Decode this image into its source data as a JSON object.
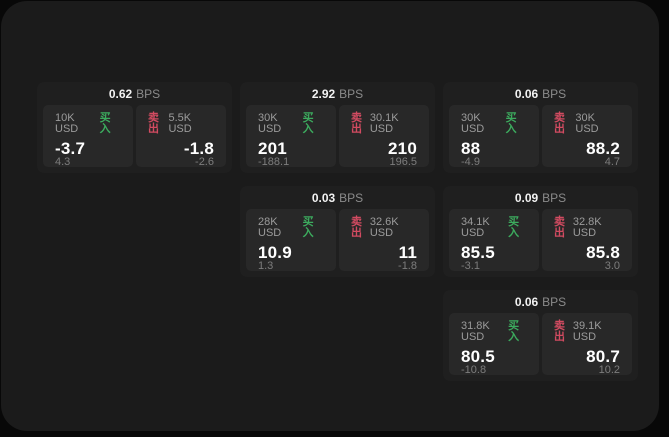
{
  "labels": {
    "buy": "买入",
    "sell": "卖出",
    "bps_unit": "BPS"
  },
  "colors": {
    "buy_green": "#3cab5e",
    "sell_red": "#d24b61",
    "window_bg": "#1b1b1b",
    "card_bg": "#1f1f1f",
    "panel_bg": "#282828"
  },
  "cards": [
    {
      "bps": "0.62",
      "buy_amount": "10K USD",
      "buy_price": "-3.7",
      "buy_delta": "4.3",
      "sell_amount": "5.5K USD",
      "sell_price": "-1.8",
      "sell_delta": "-2.6"
    },
    {
      "bps": "2.92",
      "buy_amount": "30K USD",
      "buy_price": "201",
      "buy_delta": "-188.1",
      "sell_amount": "30.1K USD",
      "sell_price": "210",
      "sell_delta": "196.5"
    },
    {
      "bps": "0.06",
      "buy_amount": "30K USD",
      "buy_price": "88",
      "buy_delta": "-4.9",
      "sell_amount": "30K USD",
      "sell_price": "88.2",
      "sell_delta": "4.7"
    },
    {
      "bps": "0.03",
      "buy_amount": "28K USD",
      "buy_price": "10.9",
      "buy_delta": "1.3",
      "sell_amount": "32.6K USD",
      "sell_price": "11",
      "sell_delta": "-1.8"
    },
    {
      "bps": "0.09",
      "buy_amount": "34.1K USD",
      "buy_price": "85.5",
      "buy_delta": "-3.1",
      "sell_amount": "32.8K USD",
      "sell_price": "85.8",
      "sell_delta": "3.0"
    },
    {
      "bps": "0.06",
      "buy_amount": "31.8K USD",
      "buy_price": "80.5",
      "buy_delta": "-10.8",
      "sell_amount": "39.1K USD",
      "sell_price": "80.7",
      "sell_delta": "10.2"
    }
  ]
}
